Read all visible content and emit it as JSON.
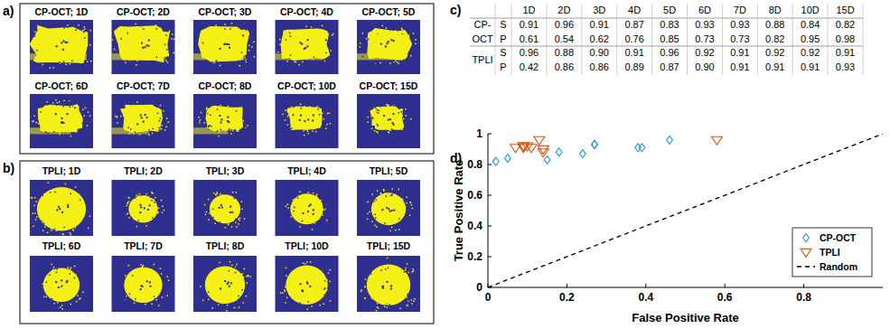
{
  "panels": {
    "a": {
      "label": "a)",
      "images": [
        "CP-OCT; 1D",
        "CP-OCT; 2D",
        "CP-OCT; 3D",
        "CP-OCT; 4D",
        "CP-OCT; 5D",
        "CP-OCT; 6D",
        "CP-OCT; 7D",
        "CP-OCT; 8D",
        "CP-OCT; 10D",
        "CP-OCT; 15D"
      ]
    },
    "b": {
      "label": "b)",
      "images": [
        "TPLI; 1D",
        "TPLI; 2D",
        "TPLI; 3D",
        "TPLI; 4D",
        "TPLI; 5D",
        "TPLI; 6D",
        "TPLI; 7D",
        "TPLI; 8D",
        "TPLI; 10D",
        "TPLI; 15D"
      ]
    },
    "c": {
      "label": "c)",
      "table": {
        "columns": [
          "1D",
          "2D",
          "3D",
          "4D",
          "5D",
          "6D",
          "7D",
          "8D",
          "10D",
          "15D"
        ],
        "groups": [
          {
            "name": [
              "CP-",
              "OCT"
            ],
            "rows": [
              {
                "label": "S",
                "cells": [
                  "0.91",
                  "0.96",
                  "0.91",
                  "0.87",
                  "0.83",
                  "0.93",
                  "0.93",
                  "0.88",
                  "0.84",
                  "0.82"
                ]
              },
              {
                "label": "P",
                "cells": [
                  "0.61",
                  "0.54",
                  "0.62",
                  "0.76",
                  "0.85",
                  "0.73",
                  "0.73",
                  "0.82",
                  "0.95",
                  "0.98"
                ]
              }
            ]
          },
          {
            "name": [
              "TPLI"
            ],
            "rows": [
              {
                "label": "S",
                "cells": [
                  "0.96",
                  "0.88",
                  "0.90",
                  "0.91",
                  "0.96",
                  "0.92",
                  "0.91",
                  "0.92",
                  "0.92",
                  "0.91"
                ]
              },
              {
                "label": "P",
                "cells": [
                  "0.42",
                  "0.86",
                  "0.86",
                  "0.89",
                  "0.87",
                  "0.90",
                  "0.91",
                  "0.91",
                  "0.91",
                  "0.93"
                ]
              }
            ]
          }
        ]
      }
    },
    "d": {
      "label": "d)"
    }
  },
  "chart_data": {
    "type": "scatter",
    "xlabel": "False Positive Rate",
    "ylabel": "True Positive Rate",
    "xlim": [
      0,
      1
    ],
    "ylim": [
      0,
      1
    ],
    "xticks": [
      0,
      0.2,
      0.4,
      0.6,
      0.8
    ],
    "yticks": [
      0,
      0.2,
      0.4,
      0.6,
      0.8,
      1
    ],
    "legend": "lower right",
    "series": [
      {
        "name": "CP-OCT",
        "color": "#1f9bd7",
        "marker": "diamond",
        "x": [
          0.39,
          0.46,
          0.38,
          0.24,
          0.15,
          0.27,
          0.27,
          0.18,
          0.05,
          0.02
        ],
        "values": [
          0.91,
          0.96,
          0.91,
          0.87,
          0.83,
          0.93,
          0.93,
          0.88,
          0.84,
          0.82
        ]
      },
      {
        "name": "TPLI",
        "color": "#d95319",
        "marker": "triangle-down",
        "x": [
          0.58,
          0.14,
          0.14,
          0.11,
          0.13,
          0.1,
          0.09,
          0.09,
          0.09,
          0.07
        ],
        "values": [
          0.96,
          0.88,
          0.9,
          0.91,
          0.96,
          0.92,
          0.91,
          0.92,
          0.92,
          0.91
        ]
      },
      {
        "name": "Random",
        "color": "#000000",
        "type": "line",
        "line_style": "dashed",
        "x": [
          0,
          1
        ],
        "values": [
          0,
          1
        ]
      }
    ]
  }
}
